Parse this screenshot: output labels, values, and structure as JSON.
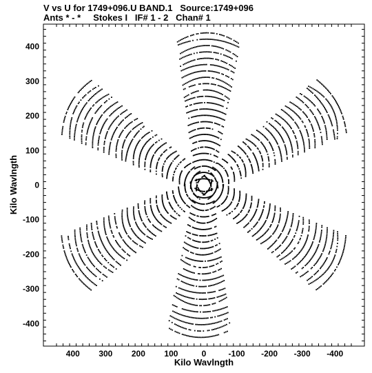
{
  "header": {
    "line1": "V vs U for 1749+096.U BAND.1   Source:1749+096",
    "line2": "Ants * - *     Stokes I   IF# 1 - 2   Chan# 1"
  },
  "chart_data": {
    "type": "scatter",
    "title": "V vs U for 1749+096.U BAND.1   Source:1749+096",
    "subtitle": "Ants * - *     Stokes I   IF# 1 - 2   Chan# 1",
    "xlabel": "Kilo Wavlngth",
    "ylabel": "Kilo Wavlngth",
    "xlim": [
      490,
      -490
    ],
    "ylim": [
      -465,
      465
    ],
    "x_ticks": [
      400,
      300,
      200,
      100,
      0,
      -100,
      -200,
      -300,
      -400
    ],
    "x_tick_labels": [
      "400",
      "300",
      "200",
      "100",
      "0",
      "-100",
      "-200",
      "-300",
      "-400"
    ],
    "y_ticks": [
      400,
      300,
      200,
      100,
      0,
      -100,
      -200,
      -300,
      -400
    ],
    "y_tick_labels": [
      "400",
      "300",
      "200",
      "100",
      "0",
      "-100",
      "-200",
      "-300",
      "-400"
    ],
    "grid": false,
    "marker_color": "#000000",
    "series": [
      {
        "values_description_free": true,
        "arms": [
          {
            "center_dir_deg": 92,
            "length_max": 440,
            "half_width_at_max": 95
          },
          {
            "center_dir_deg": 150,
            "length_max": 470,
            "half_width_at_max": 90
          },
          {
            "center_dir_deg": 210,
            "length_max": 470,
            "half_width_at_max": 90
          },
          {
            "center_dir_deg": 272,
            "length_max": 440,
            "half_width_at_max": 95
          },
          {
            "center_dir_deg": 330,
            "length_max": 470,
            "half_width_at_max": 90
          },
          {
            "center_dir_deg": 30,
            "length_max": 470,
            "half_width_at_max": 90
          }
        ],
        "tracks_per_arm": 24
      }
    ]
  }
}
